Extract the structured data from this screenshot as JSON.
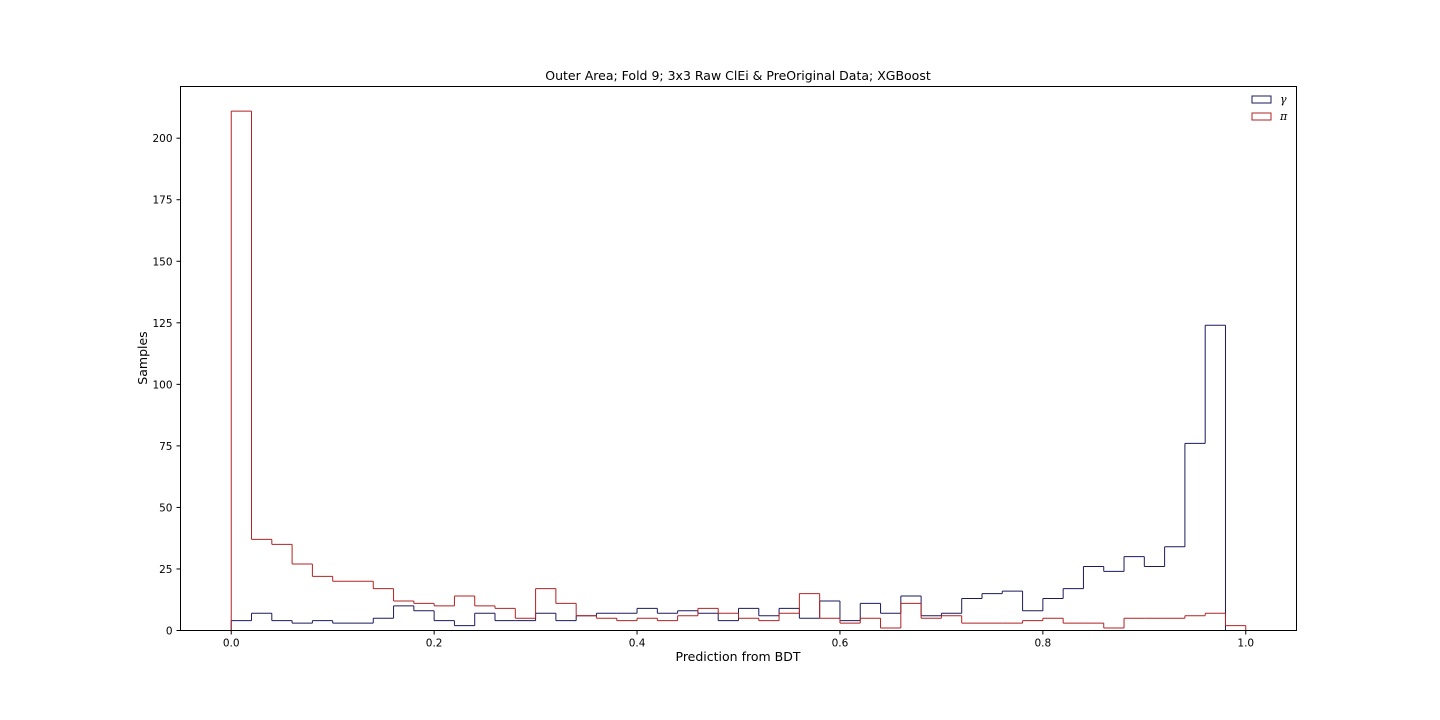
{
  "chart_data": {
    "type": "histogram-step",
    "title": "Outer Area; Fold 9; 3x3 Raw ClEi & PreOriginal Data; XGBoost",
    "xlabel": "Prediction from BDT",
    "ylabel": "Samples",
    "xlim": [
      -0.05,
      1.05
    ],
    "ylim": [
      0,
      221
    ],
    "xticks": [
      0.0,
      0.2,
      0.4,
      0.6,
      0.8,
      1.0
    ],
    "xtick_labels": [
      "0.0",
      "0.2",
      "0.4",
      "0.6",
      "0.8",
      "1.0"
    ],
    "yticks": [
      0,
      25,
      50,
      75,
      100,
      125,
      150,
      175,
      200
    ],
    "ytick_labels": [
      "0",
      "25",
      "50",
      "75",
      "100",
      "125",
      "150",
      "175",
      "200"
    ],
    "grid": false,
    "legend_position": "top-right",
    "bin_edges_start": 0.0,
    "bin_edges_end": 1.0,
    "n_bins": 50,
    "series": [
      {
        "name": "γ",
        "color": "#1a1a5e",
        "values": [
          4,
          7,
          4,
          3,
          4,
          3,
          3,
          5,
          10,
          8,
          4,
          2,
          7,
          4,
          4,
          7,
          4,
          6,
          7,
          7,
          9,
          7,
          8,
          7,
          4,
          9,
          6,
          9,
          5,
          12,
          4,
          11,
          7,
          14,
          6,
          7,
          13,
          15,
          16,
          8,
          13,
          17,
          26,
          24,
          30,
          26,
          34,
          76,
          124,
          0
        ]
      },
      {
        "name": "π",
        "color": "#b22222",
        "values": [
          211,
          37,
          35,
          27,
          22,
          20,
          20,
          17,
          12,
          11,
          10,
          14,
          10,
          9,
          5,
          17,
          11,
          6,
          5,
          4,
          5,
          4,
          6,
          9,
          7,
          5,
          4,
          7,
          15,
          5,
          3,
          5,
          1,
          11,
          5,
          6,
          3,
          3,
          3,
          4,
          5,
          3,
          3,
          1,
          5,
          5,
          5,
          6,
          7,
          2
        ]
      }
    ]
  }
}
